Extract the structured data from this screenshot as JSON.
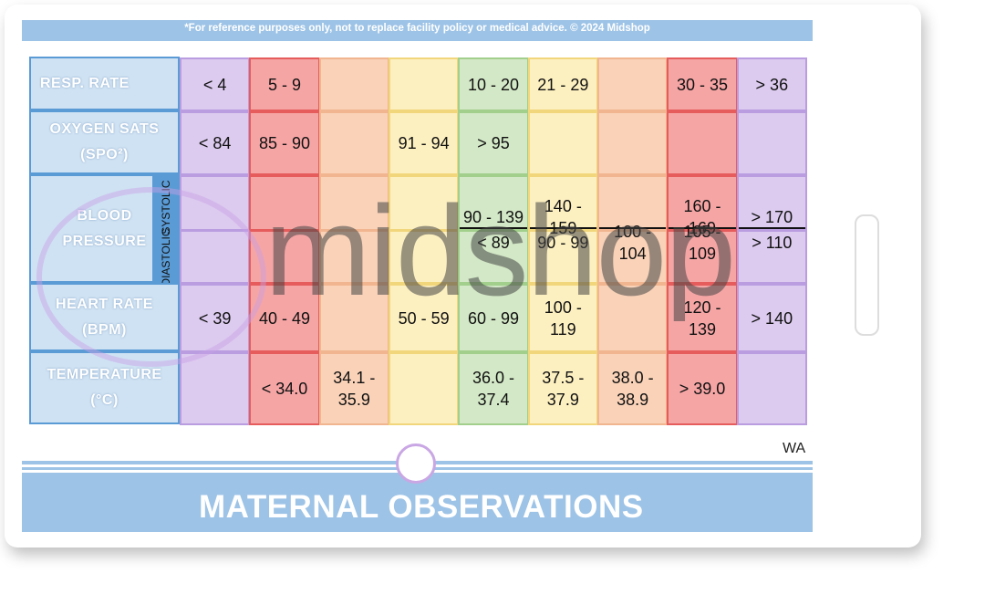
{
  "disclaimer": "*For reference purposes only, not to replace facility policy or medical advice. © 2024 Midshop",
  "title": "MATERNAL OBSERVATIONS",
  "region": "WA",
  "watermark": "midshop",
  "bp_labels": {
    "systolic": "SYSTOLIC",
    "diastolic": "DIASTOLIC"
  },
  "table": {
    "rows": [
      {
        "label": "RESP. RATE",
        "cells": [
          "< 4",
          "5 - 9",
          null,
          null,
          "10 - 20",
          "21 - 29",
          null,
          "30 - 35",
          "> 36"
        ]
      },
      {
        "label": "OXYGEN SATS (SPO²)",
        "cells": [
          "< 84",
          "85 - 90",
          null,
          "91 - 94",
          "> 95",
          null,
          null,
          null,
          null
        ]
      },
      {
        "label": "BLOOD PRESSURE",
        "systolic": [
          null,
          null,
          null,
          null,
          "90 - 139",
          "140 - 159",
          null,
          "160 - 169",
          "> 170"
        ],
        "diastolic": [
          null,
          null,
          null,
          null,
          "< 89",
          "90 - 99",
          "100 - 104",
          "105 - 109",
          "> 110"
        ]
      },
      {
        "label": "HEART RATE (BPM)",
        "cells": [
          "< 39",
          "40 - 49",
          null,
          "50 - 59",
          "60 - 99",
          "100 - 119",
          null,
          "120 - 139",
          "> 140"
        ]
      },
      {
        "label": "TEMPERATURE (°C)",
        "cells": [
          null,
          "< 34.0",
          "34.1 - 35.9",
          null,
          "36.0 - 37.4",
          "37.5 - 37.9",
          "38.0 - 38.9",
          "> 39.0",
          null
        ]
      }
    ]
  }
}
